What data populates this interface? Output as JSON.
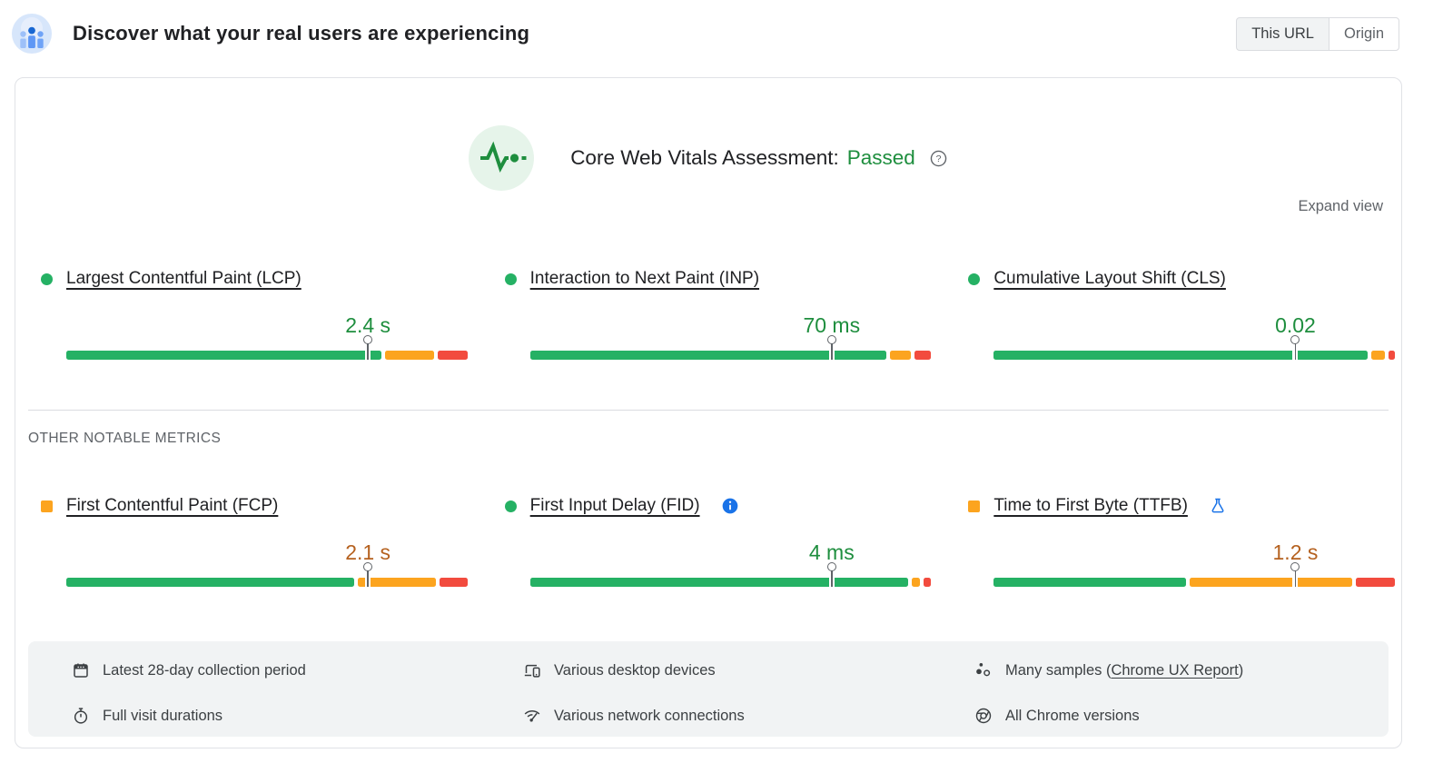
{
  "header": {
    "title": "Discover what your real users are experiencing",
    "scope_toggle": {
      "options": [
        "This URL",
        "Origin"
      ],
      "selected": "This URL"
    }
  },
  "assessment": {
    "label": "Core Web Vitals Assessment:",
    "result": "Passed"
  },
  "expand_view_label": "Expand view",
  "other_metrics_heading": "OTHER NOTABLE METRICS",
  "core_web_vitals": [
    {
      "name": "lcp",
      "label": "Largest Contentful Paint (LCP)",
      "value": "2.4 s",
      "status": "good",
      "bullet": "circle",
      "p75_marker_pct": 75.2,
      "distribution": {
        "good_pct": 78.5,
        "needs_improvement_pct": 12.3,
        "poor_pct": 7.2
      }
    },
    {
      "name": "inp",
      "label": "Interaction to Next Paint (INP)",
      "value": "70 ms",
      "status": "good",
      "bullet": "circle",
      "p75_marker_pct": 75.2,
      "distribution": {
        "good_pct": 88.8,
        "needs_improvement_pct": 5.2,
        "poor_pct": 4.0
      }
    },
    {
      "name": "cls",
      "label": "Cumulative Layout Shift (CLS)",
      "value": "0.02",
      "status": "good",
      "bullet": "circle",
      "p75_marker_pct": 75.2,
      "distribution": {
        "good_pct": 93.2,
        "needs_improvement_pct": 3.3,
        "poor_pct": 1.5
      }
    }
  ],
  "other_metrics": [
    {
      "name": "fcp",
      "label": "First Contentful Paint (FCP)",
      "value": "2.1 s",
      "status": "needs-improvement",
      "bullet": "square",
      "p75_marker_pct": 75.2,
      "distribution": {
        "good_pct": 71.8,
        "needs_improvement_pct": 19.5,
        "poor_pct": 6.7
      }
    },
    {
      "name": "fid",
      "label": "First Input Delay (FID)",
      "value": "4 ms",
      "status": "good",
      "bullet": "circle",
      "suffix_icon": "info-icon",
      "p75_marker_pct": 75.2,
      "distribution": {
        "good_pct": 94.3,
        "needs_improvement_pct": 2.0,
        "poor_pct": 1.7
      }
    },
    {
      "name": "ttfb",
      "label": "Time to First Byte (TTFB)",
      "value": "1.2 s",
      "status": "needs-improvement",
      "bullet": "square",
      "suffix_icon": "flask-icon",
      "p75_marker_pct": 75.2,
      "distribution": {
        "good_pct": 48.0,
        "needs_improvement_pct": 40.5,
        "poor_pct": 9.5
      }
    }
  ],
  "footer": {
    "items": [
      {
        "icon": "calendar-icon",
        "text": "Latest 28-day collection period"
      },
      {
        "icon": "devices-icon",
        "text": "Various desktop devices"
      },
      {
        "icon": "samples-icon",
        "text_before": "Many samples (",
        "link": "Chrome UX Report",
        "text_after": ")"
      },
      {
        "icon": "timer-icon",
        "text": "Full visit durations"
      },
      {
        "icon": "network-icon",
        "text": "Various network connections"
      },
      {
        "icon": "chrome-icon",
        "text": "All Chrome versions"
      }
    ]
  },
  "colors": {
    "bar_good": "#25b164",
    "bar_ni": "#fca41f",
    "bar_poor": "#f24b3e",
    "text_good": "#1e8e3e",
    "text_ni": "#b5611f",
    "accent_blue": "#1a73e8"
  }
}
